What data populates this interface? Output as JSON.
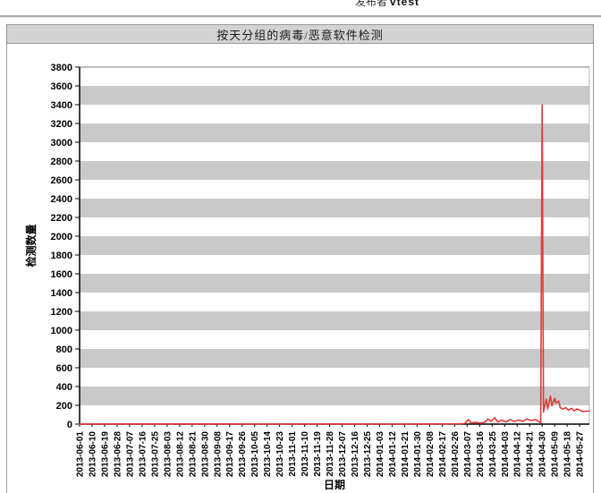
{
  "header": {
    "publisher_label": "发布者",
    "publisher_value": "vtest"
  },
  "panel": {
    "title": "按天分组的病毒/恶意软件检测"
  },
  "colors": {
    "line": "#e13b3c",
    "band_gray": "#c9c9c9",
    "titlebar_bg": "#d3d3d3",
    "panel_border": "#999999",
    "axis": "#000000"
  },
  "chart_data": {
    "type": "line",
    "title": "按天分组的病毒/恶意软件检测",
    "xlabel": "日期",
    "ylabel": "检测数量",
    "ylim": [
      0,
      3800
    ],
    "y_tick_step": 200,
    "grid": "alternating horizontal bands, gray on odd 200-bands",
    "legend": "none",
    "x_start_date": "2013-06-01",
    "x_domain_days": 367,
    "x_tick_interval_days": 9,
    "x_tick_labels": [
      "2013-06-01",
      "2013-06-10",
      "2013-06-19",
      "2013-06-28",
      "2013-07-07",
      "2013-07-16",
      "2013-07-25",
      "2013-08-03",
      "2013-08-12",
      "2013-08-21",
      "2013-08-30",
      "2013-09-08",
      "2013-09-17",
      "2013-09-26",
      "2013-10-05",
      "2013-10-14",
      "2013-10-23",
      "2013-11-01",
      "2013-11-10",
      "2013-11-19",
      "2013-11-28",
      "2013-12-07",
      "2013-12-16",
      "2013-12-25",
      "2014-01-03",
      "2014-01-12",
      "2014-01-21",
      "2014-01-30",
      "2014-02-08",
      "2014-02-17",
      "2014-02-26",
      "2014-03-07",
      "2014-03-16",
      "2014-03-25",
      "2014-04-03",
      "2014-04-12",
      "2014-04-21",
      "2014-04-30",
      "2014-05-09",
      "2014-05-18",
      "2014-05-27"
    ],
    "series": [
      {
        "color": "#e13b3c",
        "points": [
          [
            "2013-06-01",
            0
          ],
          [
            "2013-08-01",
            1
          ],
          [
            "2013-10-01",
            0
          ],
          [
            "2013-12-01",
            1
          ],
          [
            "2014-01-15",
            0
          ],
          [
            "2014-02-25",
            2
          ],
          [
            "2014-03-05",
            6
          ],
          [
            "2014-03-08",
            48
          ],
          [
            "2014-03-10",
            12
          ],
          [
            "2014-03-13",
            18
          ],
          [
            "2014-03-17",
            10
          ],
          [
            "2014-03-20",
            22
          ],
          [
            "2014-03-22",
            55
          ],
          [
            "2014-03-24",
            30
          ],
          [
            "2014-03-27",
            68
          ],
          [
            "2014-03-29",
            22
          ],
          [
            "2014-04-01",
            42
          ],
          [
            "2014-04-04",
            24
          ],
          [
            "2014-04-07",
            50
          ],
          [
            "2014-04-10",
            28
          ],
          [
            "2014-04-13",
            44
          ],
          [
            "2014-04-16",
            30
          ],
          [
            "2014-04-19",
            55
          ],
          [
            "2014-04-22",
            38
          ],
          [
            "2014-04-25",
            48
          ],
          [
            "2014-04-27",
            35
          ],
          [
            "2014-04-29",
            12
          ],
          [
            "2014-04-30",
            3400
          ],
          [
            "2014-05-01",
            130
          ],
          [
            "2014-05-03",
            265
          ],
          [
            "2014-05-04",
            160
          ],
          [
            "2014-05-06",
            300
          ],
          [
            "2014-05-07",
            195
          ],
          [
            "2014-05-09",
            275
          ],
          [
            "2014-05-10",
            225
          ],
          [
            "2014-05-12",
            245
          ],
          [
            "2014-05-13",
            175
          ],
          [
            "2014-05-15",
            160
          ],
          [
            "2014-05-17",
            175
          ],
          [
            "2014-05-19",
            148
          ],
          [
            "2014-05-21",
            168
          ],
          [
            "2014-05-23",
            142
          ],
          [
            "2014-05-25",
            162
          ],
          [
            "2014-05-27",
            150
          ],
          [
            "2014-05-29",
            134
          ],
          [
            "2014-06-01",
            138
          ],
          [
            "2014-06-03",
            140
          ]
        ]
      }
    ]
  }
}
